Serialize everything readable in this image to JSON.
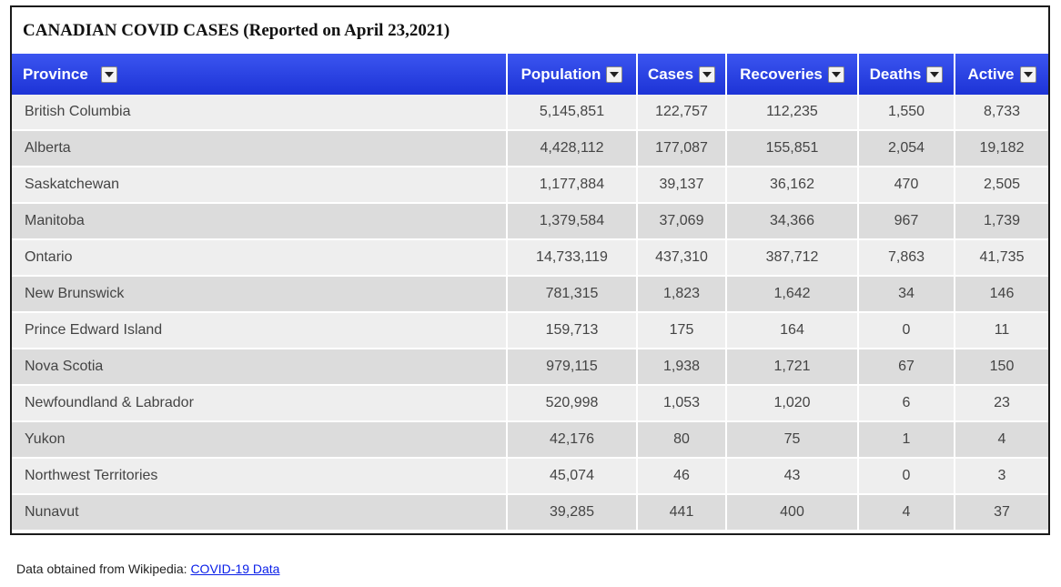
{
  "title": "CANADIAN COVID CASES (Reported on April 23,2021)",
  "columns": [
    "Province",
    "Population",
    "Cases",
    "Recoveries",
    "Deaths",
    "Active"
  ],
  "rows": [
    [
      "British Columbia",
      "5,145,851",
      "122,757",
      "112,235",
      "1,550",
      "8,733"
    ],
    [
      "Alberta",
      "4,428,112",
      "177,087",
      "155,851",
      "2,054",
      "19,182"
    ],
    [
      "Saskatchewan",
      "1,177,884",
      "39,137",
      "36,162",
      "470",
      "2,505"
    ],
    [
      "Manitoba",
      "1,379,584",
      "37,069",
      "34,366",
      "967",
      "1,739"
    ],
    [
      "Ontario",
      "14,733,119",
      "437,310",
      "387,712",
      "7,863",
      "41,735"
    ],
    [
      "New Brunswick",
      "781,315",
      "1,823",
      "1,642",
      "34",
      "146"
    ],
    [
      "Prince Edward Island",
      "159,713",
      "175",
      "164",
      "0",
      "11"
    ],
    [
      "Nova Scotia",
      "979,115",
      "1,938",
      "1,721",
      "67",
      "150"
    ],
    [
      "Newfoundland & Labrador",
      "520,998",
      "1,053",
      "1,020",
      "6",
      "23"
    ],
    [
      "Yukon",
      "42,176",
      "80",
      "75",
      "1",
      "4"
    ],
    [
      "Northwest Territories",
      "45,074",
      "46",
      "43",
      "0",
      "3"
    ],
    [
      "Nunavut",
      "39,285",
      "441",
      "400",
      "4",
      "37"
    ]
  ],
  "footer": {
    "text": "Data obtained from Wikipedia: ",
    "link_label": "COVID-19 Data"
  },
  "colors": {
    "header_bg": "#2a44e6",
    "row_odd": "#eeeeee",
    "row_even": "#dcdcdc",
    "link": "#0b20e8"
  },
  "icons": {
    "sort": "chevron-down-icon"
  }
}
